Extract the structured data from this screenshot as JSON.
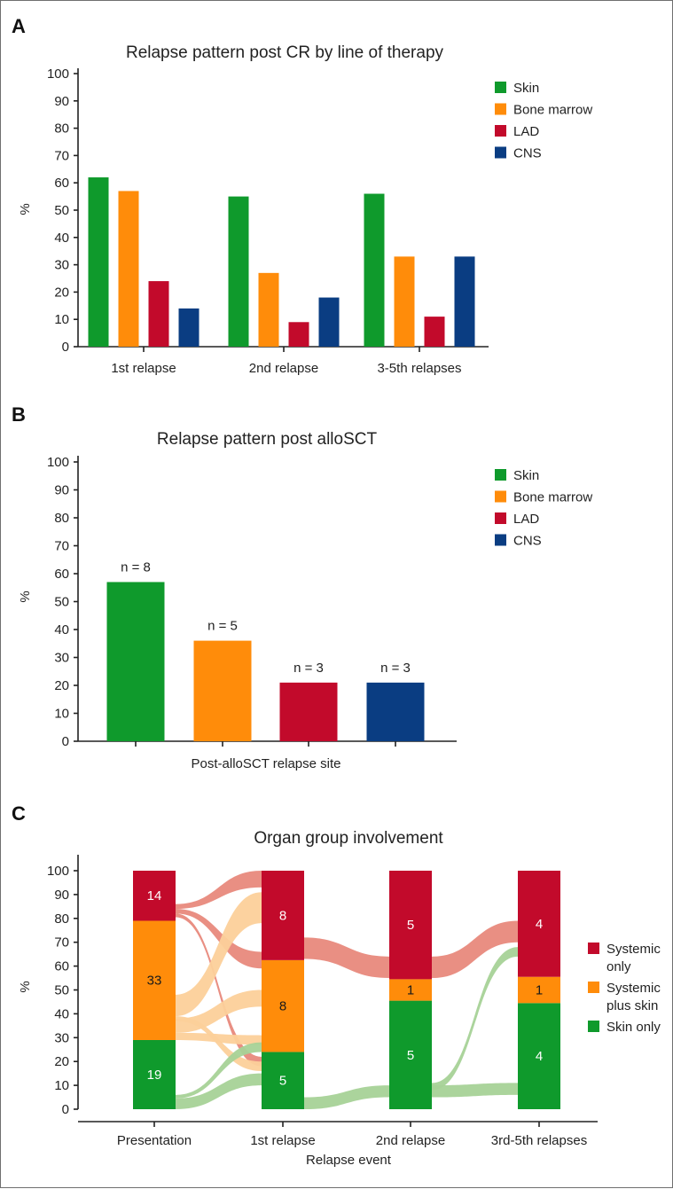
{
  "panel_letters": {
    "a": "A",
    "b": "B",
    "c": "C"
  },
  "colors": {
    "skin": "#0f9a2c",
    "bone_marrow": "#ff8c0a",
    "lad": "#c20a2b",
    "cns": "#0a3d82",
    "flow_red": "#e8897c",
    "flow_orange": "#fcd09a",
    "flow_green": "#a7d297"
  },
  "chart_data": [
    {
      "type": "bar",
      "panel": "A",
      "title": "Relapse pattern post CR by line of therapy",
      "ylabel": "%",
      "xlabel": "",
      "ylim": [
        0,
        100
      ],
      "yticks": [
        0,
        10,
        20,
        30,
        40,
        50,
        60,
        70,
        80,
        90,
        100
      ],
      "categories": [
        "1st relapse",
        "2nd relapse",
        "3-5th relapses"
      ],
      "series": [
        {
          "name": "Skin",
          "color": "#0f9a2c",
          "values": [
            62,
            55,
            56
          ]
        },
        {
          "name": "Bone marrow",
          "color": "#ff8c0a",
          "values": [
            57,
            27,
            33
          ]
        },
        {
          "name": "LAD",
          "color": "#c20a2b",
          "values": [
            24,
            9,
            11
          ]
        },
        {
          "name": "CNS",
          "color": "#0a3d82",
          "values": [
            14,
            18,
            33
          ]
        }
      ],
      "legend_position": "top-right"
    },
    {
      "type": "bar",
      "panel": "B",
      "title": "Relapse pattern post alloSCT",
      "ylabel": "%",
      "xlabel": "Post-alloSCT relapse site",
      "ylim": [
        0,
        100
      ],
      "yticks": [
        0,
        10,
        20,
        30,
        40,
        50,
        60,
        70,
        80,
        90,
        100
      ],
      "categories": [
        "Skin",
        "Bone marrow",
        "LAD",
        "CNS"
      ],
      "values": [
        57,
        36,
        21,
        21
      ],
      "data_labels": [
        "n = 8",
        "n = 5",
        "n = 3",
        "n = 3"
      ],
      "colors": [
        "#0f9a2c",
        "#ff8c0a",
        "#c20a2b",
        "#0a3d82"
      ],
      "legend": [
        {
          "name": "Skin",
          "color": "#0f9a2c"
        },
        {
          "name": "Bone marrow",
          "color": "#ff8c0a"
        },
        {
          "name": "LAD",
          "color": "#c20a2b"
        },
        {
          "name": "CNS",
          "color": "#0a3d82"
        }
      ],
      "legend_position": "top-right"
    },
    {
      "type": "alluvial",
      "panel": "C",
      "title": "Organ group involvement",
      "ylabel": "%",
      "xlabel": "Relapse event",
      "ylim": [
        0,
        100
      ],
      "yticks": [
        0,
        10,
        20,
        30,
        40,
        50,
        60,
        70,
        80,
        90,
        100
      ],
      "categories": [
        "Presentation",
        "1st relapse",
        "2nd relapse",
        "3rd-5th relapses"
      ],
      "series": [
        {
          "name": "Skin only",
          "color": "#0f9a2c",
          "counts": [
            19,
            5,
            5,
            4
          ],
          "bounds": [
            [
              0,
              29
            ],
            [
              0,
              24
            ],
            [
              0,
              45.5
            ],
            [
              0,
              44.5
            ]
          ]
        },
        {
          "name": "Systemic plus skin",
          "color": "#ff8c0a",
          "counts": [
            33,
            8,
            1,
            1
          ],
          "bounds": [
            [
              29,
              79
            ],
            [
              24,
              62.5
            ],
            [
              45.5,
              54.5
            ],
            [
              44.5,
              55.5
            ]
          ]
        },
        {
          "name": "Systemic only",
          "color": "#c20a2b",
          "counts": [
            14,
            8,
            5,
            4
          ],
          "bounds": [
            [
              79,
              100
            ],
            [
              62.5,
              100
            ],
            [
              54.5,
              100
            ],
            [
              55.5,
              100
            ]
          ]
        }
      ],
      "legend": [
        {
          "name": "Systemic only",
          "color": "#c20a2b",
          "lines": [
            "Systemic",
            "only"
          ]
        },
        {
          "name": "Systemic plus skin",
          "color": "#ff8c0a",
          "lines": [
            "Systemic",
            "plus skin"
          ]
        },
        {
          "name": "Skin only",
          "color": "#0f9a2c",
          "lines": [
            "Skin only"
          ]
        }
      ],
      "flows": [
        {
          "color": "flow_red",
          "from_col": 0,
          "from": [
            84,
            86
          ],
          "to_col": 1,
          "to": [
            93,
            100
          ]
        },
        {
          "color": "flow_red",
          "from_col": 0,
          "from": [
            82,
            84
          ],
          "to_col": 1,
          "to": [
            59,
            66
          ]
        },
        {
          "color": "flow_red",
          "from_col": 0,
          "from": [
            80.5,
            82
          ],
          "to_col": 1,
          "to": [
            18,
            22
          ]
        },
        {
          "color": "flow_orange",
          "from_col": 0,
          "from": [
            39,
            48
          ],
          "to_col": 1,
          "to": [
            78,
            91
          ]
        },
        {
          "color": "flow_orange",
          "from_col": 0,
          "from": [
            32,
            38
          ],
          "to_col": 1,
          "to": [
            43,
            50
          ]
        },
        {
          "color": "flow_orange",
          "from_col": 0,
          "from": [
            29,
            32
          ],
          "to_col": 1,
          "to": [
            27,
            31
          ]
        },
        {
          "color": "flow_orange",
          "from_col": 0,
          "from": [
            37,
            39
          ],
          "to_col": 1,
          "to": [
            16,
            20
          ]
        },
        {
          "color": "flow_green",
          "from_col": 0,
          "from": [
            4.5,
            6
          ],
          "to_col": 1,
          "to": [
            24,
            28
          ]
        },
        {
          "color": "flow_green",
          "from_col": 0,
          "from": [
            0,
            4.5
          ],
          "to_col": 1,
          "to": [
            10,
            15
          ]
        },
        {
          "color": "flow_red",
          "from_col": 1,
          "from": [
            63,
            72
          ],
          "to_col": 2,
          "to": [
            55,
            64
          ]
        },
        {
          "color": "flow_green",
          "from_col": 1,
          "from": [
            0,
            5
          ],
          "to_col": 2,
          "to": [
            5,
            10
          ]
        },
        {
          "color": "flow_red",
          "from_col": 2,
          "from": [
            55,
            64
          ],
          "to_col": 3,
          "to": [
            70,
            79
          ]
        },
        {
          "color": "flow_green",
          "from_col": 2,
          "from": [
            8,
            11
          ],
          "to_col": 3,
          "to": [
            64,
            68
          ]
        },
        {
          "color": "flow_green",
          "from_col": 2,
          "from": [
            5,
            10
          ],
          "to_col": 3,
          "to": [
            6,
            11
          ]
        }
      ]
    }
  ]
}
